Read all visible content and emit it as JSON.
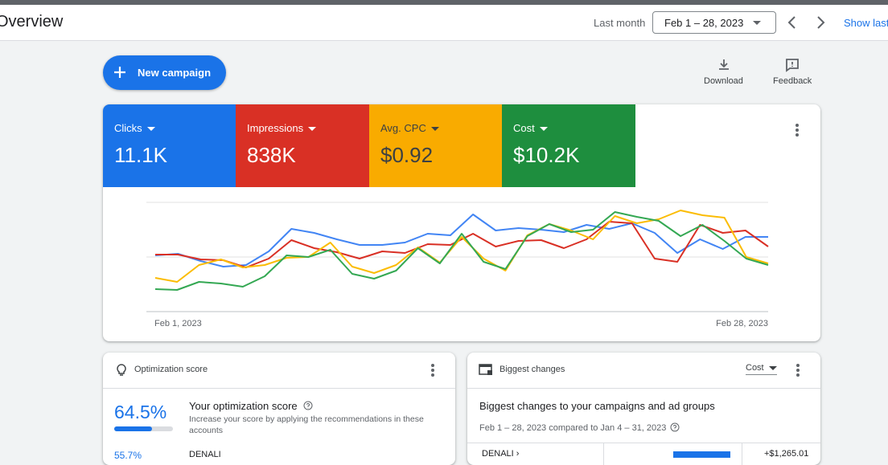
{
  "header": {
    "title": "Overview",
    "range_label": "Last month",
    "date_range": "Feb 1 – 28, 2023",
    "show_last": "Show last"
  },
  "toolbar": {
    "new_campaign": "New campaign",
    "download": "Download",
    "feedback": "Feedback"
  },
  "metrics": [
    {
      "label": "Clicks",
      "value": "11.1K"
    },
    {
      "label": "Impressions",
      "value": "838K"
    },
    {
      "label": "Avg. CPC",
      "value": "$0.92"
    },
    {
      "label": "Cost",
      "value": "$10.2K"
    }
  ],
  "chart": {
    "start": "Feb 1, 2023",
    "end": "Feb 28, 2023"
  },
  "optimization": {
    "title": "Optimization score",
    "score": "64.5%",
    "heading": "Your optimization score",
    "description": "Increase your score by applying the recommendations in these accounts",
    "row_score": "55.7%",
    "row_name": "DENALI"
  },
  "changes": {
    "title": "Biggest changes",
    "metric": "Cost",
    "heading": "Biggest changes to your campaigns and ad groups",
    "comparison": "Feb 1 – 28, 2023 compared to Jan 4 – 31, 2023",
    "row_name": "DENALI",
    "row_value": "+$1,265.01"
  }
}
